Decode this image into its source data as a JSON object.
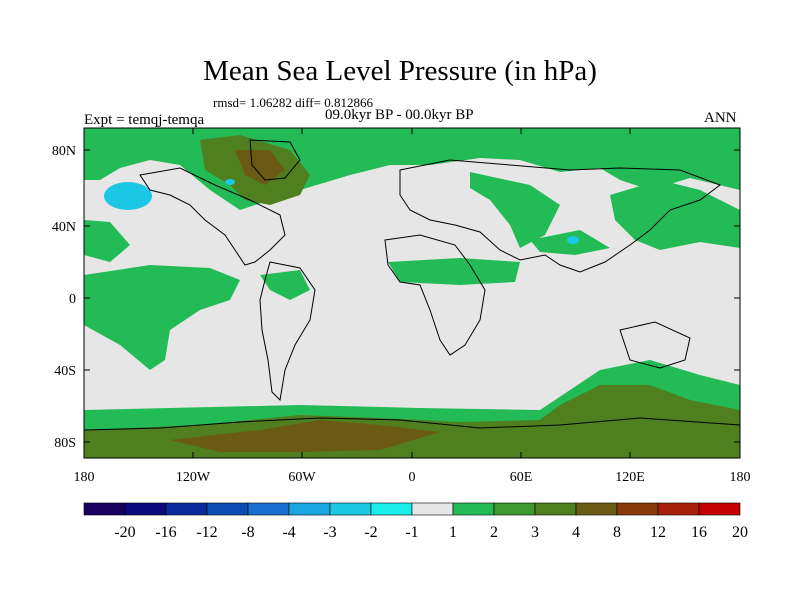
{
  "header": {
    "title": "Mean Sea Level Pressure (in hPa)",
    "stats": "rmsd= 1.06282 diff= 0.812866",
    "period": "09.0kyr BP - 00.0kyr BP",
    "experiment": "Expt = temqj-temqa",
    "season": "ANN"
  },
  "axes": {
    "lat_ticks": [
      "80N",
      "40N",
      "0",
      "40S",
      "80S"
    ],
    "lon_ticks": [
      "180",
      "120W",
      "60W",
      "0",
      "60E",
      "120E",
      "180"
    ]
  },
  "colorbar": {
    "labels": [
      "-20",
      "-16",
      "-12",
      "-8",
      "-4",
      "-3",
      "-2",
      "-1",
      "1",
      "2",
      "3",
      "4",
      "8",
      "12",
      "16",
      "20"
    ],
    "colors": [
      "#1a0060",
      "#0a0a80",
      "#0a2a9c",
      "#0a4bb4",
      "#1a6fd0",
      "#1aa6e0",
      "#1ac8e6",
      "#1aeeea",
      "#e6e6e6",
      "#22bb55",
      "#3d9a2e",
      "#4f7f1f",
      "#6b5a13",
      "#8a3a0a",
      "#a8200a",
      "#c40000"
    ]
  },
  "legend_colors": {
    "zero": "#e6e6e6",
    "level_1_2": "#22bb55",
    "level_3_4": "#4f7f1f",
    "level_4_8": "#6b5a13",
    "negative_small": "#1ac8e6",
    "coast": "#000000"
  }
}
